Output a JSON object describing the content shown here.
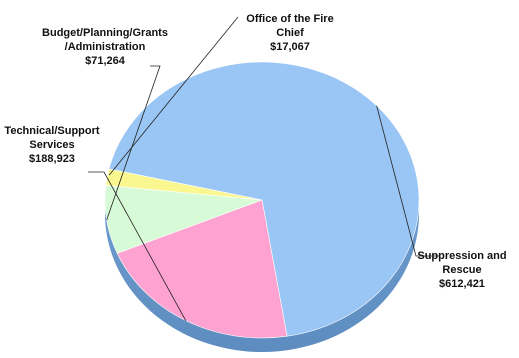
{
  "chart_data": {
    "type": "pie",
    "slices": [
      {
        "name_lines": [
          "Suppression and",
          "Rescue"
        ],
        "value_label": "$612,421",
        "value": 612421,
        "color": "#99c6f4"
      },
      {
        "name_lines": [
          "Technical/Support",
          "Services"
        ],
        "value_label": "$188,923",
        "value": 188923,
        "color": "#fda2d1"
      },
      {
        "name_lines": [
          "Budget/Planning/Grants",
          "/Administration"
        ],
        "value_label": "$71,264",
        "value": 71264,
        "color": "#d7fbd6"
      },
      {
        "name_lines": [
          "Office of the Fire",
          "Chief"
        ],
        "value_label": "$17,067",
        "value": 17067,
        "color": "#fbf790"
      }
    ]
  }
}
